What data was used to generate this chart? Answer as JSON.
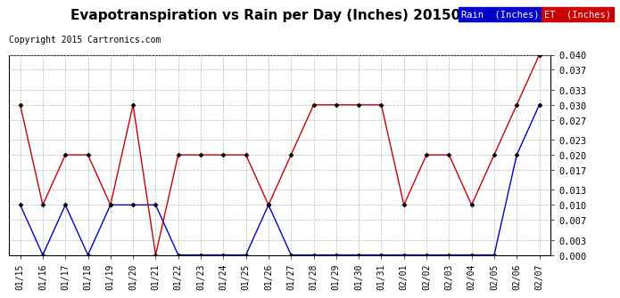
{
  "title": "Evapotranspiration vs Rain per Day (Inches) 20150208",
  "copyright": "Copyright 2015 Cartronics.com",
  "legend_rain": "Rain  (Inches)",
  "legend_et": "ET  (Inches)",
  "dates": [
    "01/15",
    "01/16",
    "01/17",
    "01/18",
    "01/19",
    "01/20",
    "01/21",
    "01/22",
    "01/23",
    "01/24",
    "01/25",
    "01/26",
    "01/27",
    "01/28",
    "01/29",
    "01/30",
    "01/31",
    "02/01",
    "02/02",
    "02/03",
    "02/04",
    "02/05",
    "02/06",
    "02/07"
  ],
  "rain": [
    0.01,
    0.0,
    0.01,
    0.0,
    0.01,
    0.01,
    0.01,
    0.0,
    0.0,
    0.0,
    0.0,
    0.01,
    0.0,
    0.0,
    0.0,
    0.0,
    0.0,
    0.0,
    0.0,
    0.0,
    0.0,
    0.0,
    0.02,
    0.03
  ],
  "et": [
    0.03,
    0.01,
    0.02,
    0.02,
    0.01,
    0.03,
    0.0,
    0.02,
    0.02,
    0.02,
    0.02,
    0.01,
    0.02,
    0.03,
    0.03,
    0.03,
    0.03,
    0.01,
    0.02,
    0.02,
    0.01,
    0.02,
    0.03,
    0.04
  ],
  "rain_color": "#0000cc",
  "et_color": "#cc0000",
  "rain_legend_bg": "#0000cc",
  "et_legend_bg": "#cc0000",
  "grid_color": "#bbbbbb",
  "background_color": "#ffffff",
  "title_fontsize": 11,
  "copyright_fontsize": 7,
  "ylim_min": 0.0,
  "ylim_max": 0.04,
  "yticks": [
    0.0,
    0.003,
    0.007,
    0.01,
    0.013,
    0.017,
    0.02,
    0.023,
    0.027,
    0.03,
    0.033,
    0.037,
    0.04
  ]
}
